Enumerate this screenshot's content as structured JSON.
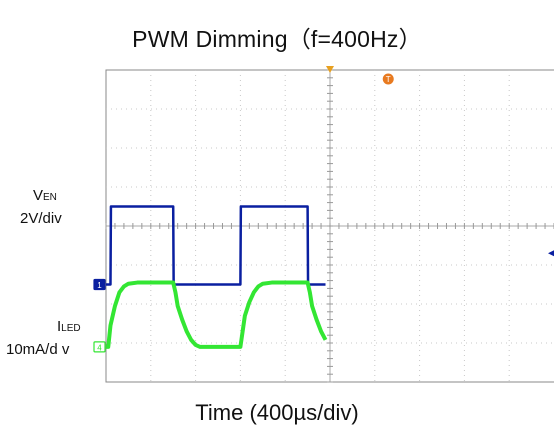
{
  "chart_data": {
    "type": "line",
    "title": "PWM Dimming（f=400Hz）",
    "xlabel": "Time (400µs/div)",
    "x_divisions": 10,
    "y_divisions": 8,
    "grid": true,
    "series": [
      {
        "name": "VEN",
        "label_main": "V",
        "label_sub": "EN",
        "scale": "2V/div",
        "color": "#0a1fa0",
        "marker": "1",
        "x": [
          0,
          0.1,
          0.11,
          1.5,
          1.51,
          3.0,
          3.01,
          4.5,
          4.51,
          4.9
        ],
        "y": [
          2.5,
          2.5,
          4.5,
          4.5,
          2.5,
          2.5,
          4.5,
          4.5,
          2.5,
          2.5
        ]
      },
      {
        "name": "ILED",
        "label_main": "I",
        "label_sub": "LED",
        "scale": "10mA/d v",
        "color": "#33e633",
        "marker": "4",
        "x": [
          0,
          0.05,
          0.1,
          0.15,
          0.2,
          0.3,
          0.4,
          0.5,
          0.7,
          1.0,
          1.5,
          1.55,
          1.6,
          1.7,
          1.8,
          1.9,
          2.0,
          2.1,
          2.3,
          3.0,
          3.05,
          3.1,
          3.2,
          3.3,
          3.4,
          3.5,
          3.7,
          4.0,
          4.5,
          4.55,
          4.6,
          4.7,
          4.8,
          4.9
        ],
        "y": [
          0.9,
          0.9,
          1.45,
          1.7,
          1.95,
          2.3,
          2.45,
          2.52,
          2.55,
          2.55,
          2.55,
          2.3,
          1.95,
          1.6,
          1.3,
          1.08,
          0.95,
          0.9,
          0.9,
          0.9,
          1.3,
          1.7,
          2.05,
          2.3,
          2.45,
          2.52,
          2.55,
          2.55,
          2.55,
          2.3,
          1.95,
          1.6,
          1.3,
          1.08
        ]
      }
    ],
    "trigger_marker": "T"
  }
}
